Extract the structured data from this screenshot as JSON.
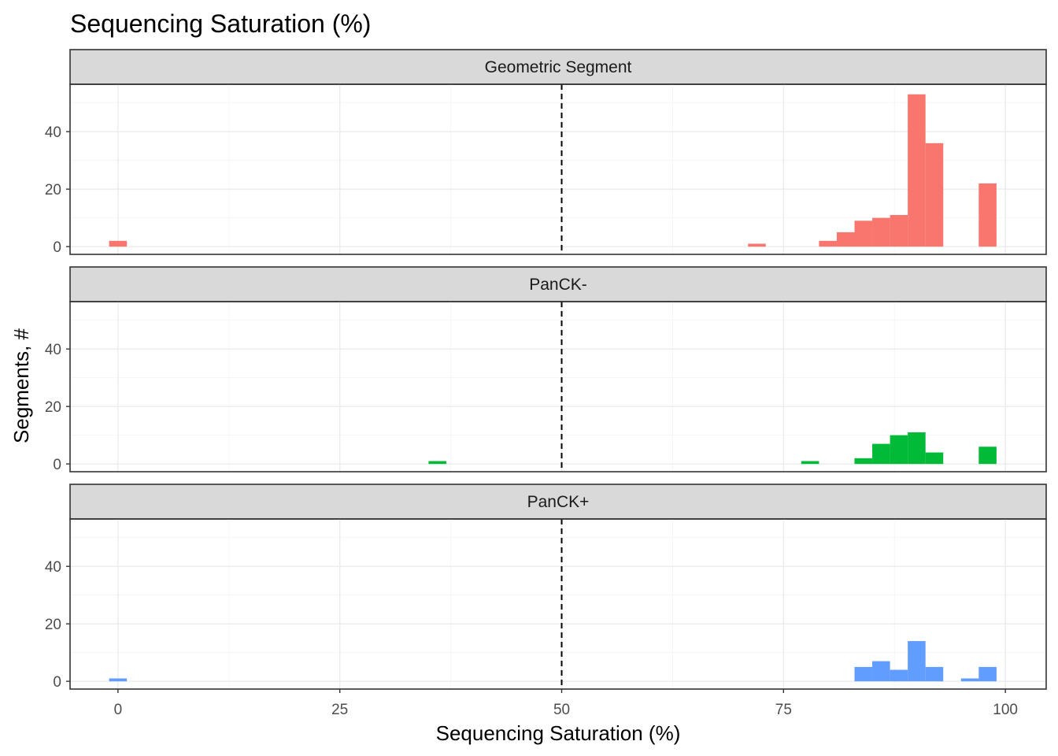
{
  "chart_data": {
    "type": "bar",
    "title": "Sequencing Saturation (%)",
    "xlabel": "Sequencing Saturation (%)",
    "ylabel": "Segments, #",
    "xlim": [
      -5.4,
      104.6
    ],
    "ylim": [
      -2.7,
      56.5
    ],
    "x_ticks": [
      0,
      25,
      50,
      75,
      100
    ],
    "y_ticks": [
      0,
      20,
      40
    ],
    "bin_width": 2,
    "reference_line": {
      "x": 50,
      "style": "dashed"
    },
    "grid": true,
    "legend": "none",
    "facets": [
      {
        "label": "Geometric Segment",
        "color": "#F8766D",
        "bins": [
          {
            "x": 0,
            "count": 2
          },
          {
            "x": 72,
            "count": 1
          },
          {
            "x": 80,
            "count": 2
          },
          {
            "x": 82,
            "count": 5
          },
          {
            "x": 84,
            "count": 9
          },
          {
            "x": 86,
            "count": 10
          },
          {
            "x": 88,
            "count": 11
          },
          {
            "x": 90,
            "count": 53
          },
          {
            "x": 92,
            "count": 36
          },
          {
            "x": 98,
            "count": 22
          }
        ]
      },
      {
        "label": "PanCK-",
        "color": "#00BA38",
        "bins": [
          {
            "x": 36,
            "count": 1
          },
          {
            "x": 78,
            "count": 1
          },
          {
            "x": 84,
            "count": 2
          },
          {
            "x": 86,
            "count": 7
          },
          {
            "x": 88,
            "count": 10
          },
          {
            "x": 90,
            "count": 11
          },
          {
            "x": 92,
            "count": 4
          },
          {
            "x": 98,
            "count": 6
          }
        ]
      },
      {
        "label": "PanCK+",
        "color": "#619CFF",
        "bins": [
          {
            "x": 0,
            "count": 1
          },
          {
            "x": 84,
            "count": 5
          },
          {
            "x": 86,
            "count": 7
          },
          {
            "x": 88,
            "count": 4
          },
          {
            "x": 90,
            "count": 14
          },
          {
            "x": 92,
            "count": 5
          },
          {
            "x": 96,
            "count": 1
          },
          {
            "x": 98,
            "count": 5
          }
        ]
      }
    ]
  }
}
